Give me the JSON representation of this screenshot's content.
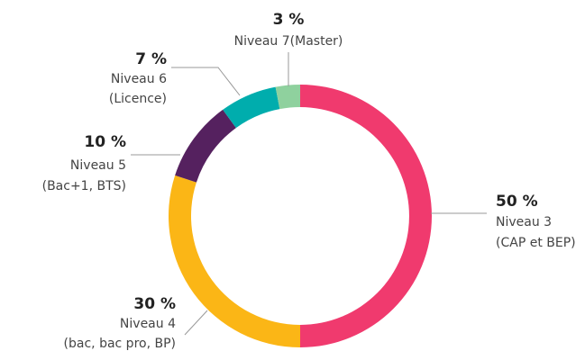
{
  "chart_data": {
    "type": "donut",
    "categories": [
      [
        "Niveau 3",
        "(CAP et BEP)"
      ],
      [
        "Niveau 4",
        "(bac, bac pro, BP)"
      ],
      [
        "Niveau 5",
        "(Bac+1, BTS)"
      ],
      [
        "Niveau 6",
        "(Licence)"
      ],
      [
        "Niveau 7(Master)"
      ]
    ],
    "values": [
      50,
      30,
      10,
      7,
      3
    ],
    "value_labels": [
      "50 %",
      "30 %",
      "10 %",
      "7 %",
      "3 %"
    ],
    "colors": [
      "#f03a6e",
      "#fbb616",
      "#55215f",
      "#00adad",
      "#8fd19e"
    ]
  }
}
